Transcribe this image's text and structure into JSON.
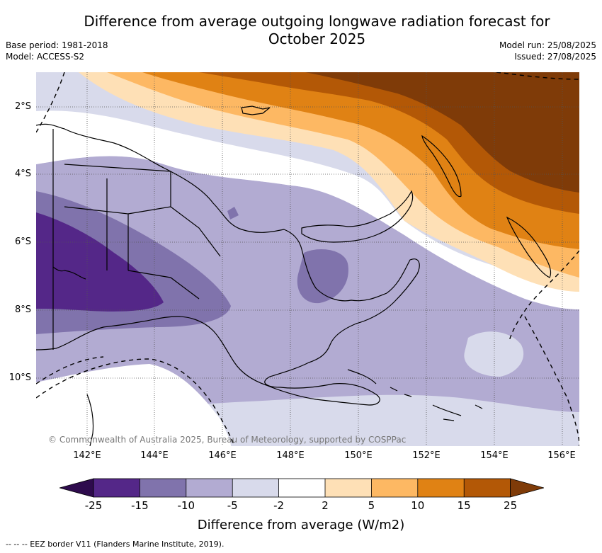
{
  "title": "Difference from average outgoing longwave radiation forecast for\nOctober 2025",
  "meta_left": [
    "Base period: 1981-2018",
    "Model: ACCESS-S2"
  ],
  "meta_right": [
    "Model run: 25/08/2025",
    "Issued: 27/08/2025"
  ],
  "copyright": "© Commonwealth of Australia 2025, Bureau of Meteorology, supported by COSPPac",
  "lon_labels": [
    "142°E",
    "144°E",
    "146°E",
    "148°E",
    "150°E",
    "152°E",
    "154°E",
    "156°E"
  ],
  "lat_labels": [
    "2°S",
    "4°S",
    "6°S",
    "8°S",
    "10°S"
  ],
  "colorbar": {
    "title": "Difference from average (W/m2)",
    "tick_labels": [
      "-25",
      "-15",
      "-10",
      "-5",
      "-2",
      "2",
      "5",
      "10",
      "15",
      "25"
    ],
    "colors": {
      "below_min": "#2e0b4d",
      "c1": "#542788",
      "c2": "#8073ac",
      "c3": "#b2abd2",
      "c4": "#d8daeb",
      "c5": "#ffffff",
      "c6": "#fee0b6",
      "c7": "#fdb863",
      "c8": "#e08214",
      "c9": "#b35806",
      "above_max": "#7f3b08"
    }
  },
  "footnote": "-- -- -- EEZ border V11 (Flanders Marine Institute, 2019)."
}
